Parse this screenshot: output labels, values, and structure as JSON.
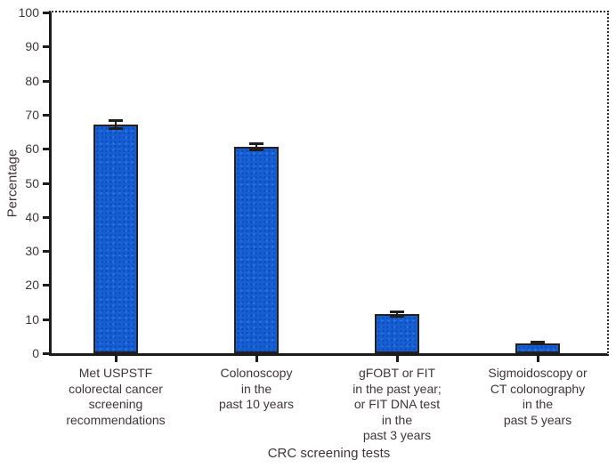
{
  "chart_data": {
    "type": "bar",
    "title": "",
    "xlabel": "CRC screening tests",
    "ylabel": "Percentage",
    "ylim": [
      0,
      100
    ],
    "ytick_step": 10,
    "grid": false,
    "legend": null,
    "categories": [
      "Met USPSTF\ncolorectal cancer\nscreening\nrecommendations",
      "Colonoscopy\nin the\npast 10 years",
      "gFOBT or FIT\nin the past year;\nor FIT DNA test\nin the\npast 3 years",
      "Sigmoidoscopy or\nCT colonography\nin the\npast 5 years"
    ],
    "values": [
      67,
      60.5,
      11.5,
      3
    ],
    "error_bars": [
      1.3,
      1.1,
      0.9,
      0.5
    ],
    "colors": {
      "bar_fill": "#155fd3",
      "bar_stipple": "#0b49bd",
      "bar_border": "#27201b",
      "axis": "#1c1c1c",
      "text": "#3e353b"
    }
  }
}
